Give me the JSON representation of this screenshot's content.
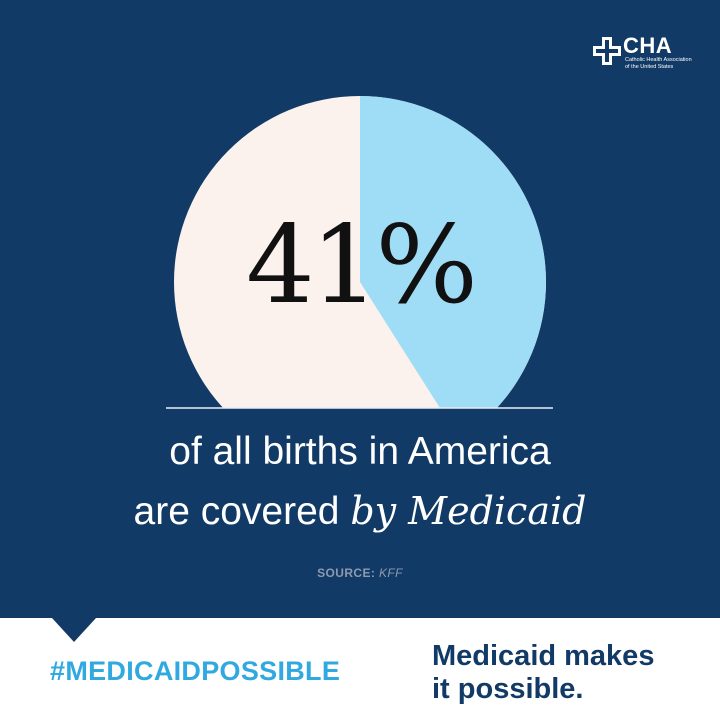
{
  "brand": {
    "abbrev": "CHA",
    "full_name": "Catholic Health Association of the United States",
    "background": "#123a66"
  },
  "chart_data": {
    "type": "pie",
    "values": [
      41,
      59
    ],
    "colors": [
      "#9fdcf5",
      "#fbf2ee"
    ],
    "data_label": "41%"
  },
  "headline": {
    "line1": "of all births in America",
    "line2_plain": "are covered ",
    "line2_emph": "by Medicaid"
  },
  "source": {
    "label": "SOURCE:",
    "value": "KFF"
  },
  "footer": {
    "hashtag": "#MEDICAIDPOSSIBLE",
    "slogan_line1": "Medicaid makes",
    "slogan_line2": "it possible.",
    "hashtag_color": "#2fa9e0"
  }
}
